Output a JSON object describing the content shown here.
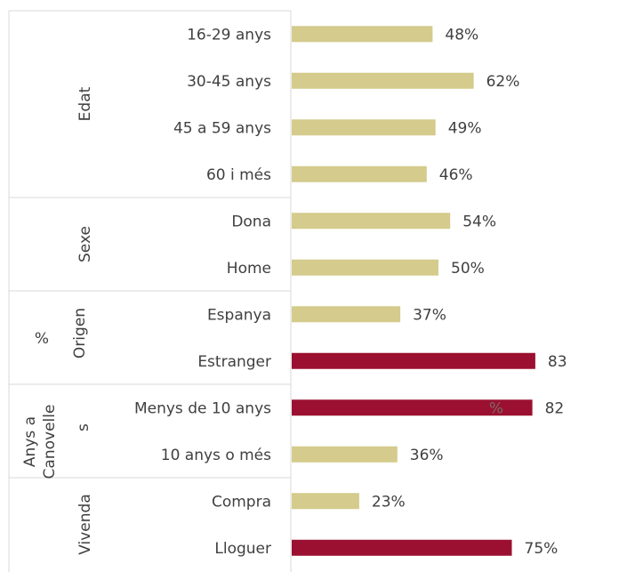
{
  "chart_data": {
    "type": "bar",
    "orientation": "horizontal",
    "groups": [
      {
        "name": "Edat",
        "categories": [
          "16-29 anys",
          "30-45 anys",
          "45 a 59 anys",
          "60 i més"
        ]
      },
      {
        "name": "Sexe",
        "categories": [
          "Dona",
          "Home"
        ]
      },
      {
        "name": "Origen",
        "categories": [
          "Espanya",
          "Estranger"
        ]
      },
      {
        "name": "Anys a Canovelles",
        "categories": [
          "Menys de 10 anys",
          "10 anys o més"
        ]
      },
      {
        "name": "Vivenda",
        "categories": [
          "Compra",
          "Lloguer"
        ]
      }
    ],
    "categories": [
      "16-29 anys",
      "30-45 anys",
      "45 a 59 anys",
      "60 i més",
      "Dona",
      "Home",
      "Espanya",
      "Estranger",
      "Menys de 10 anys",
      "10 anys o més",
      "Compra",
      "Lloguer"
    ],
    "values": [
      48,
      62,
      49,
      46,
      54,
      50,
      37,
      83,
      82,
      36,
      23,
      75
    ],
    "labels": [
      "48%",
      "62%",
      "49%",
      "46%",
      "54%",
      "50%",
      "37%",
      "83",
      "82",
      "36%",
      "23%",
      "75%"
    ],
    "stray_labels": [
      "%",
      "%"
    ],
    "xlim": [
      0,
      100
    ],
    "highlight": [
      false,
      false,
      false,
      false,
      false,
      false,
      false,
      true,
      true,
      false,
      false,
      true
    ],
    "colors": {
      "normal": "#D4CB8C",
      "highlight": "#9B1030",
      "grid": "#D9D9D9",
      "text": "#404040"
    },
    "grid": false,
    "legend": "none"
  }
}
